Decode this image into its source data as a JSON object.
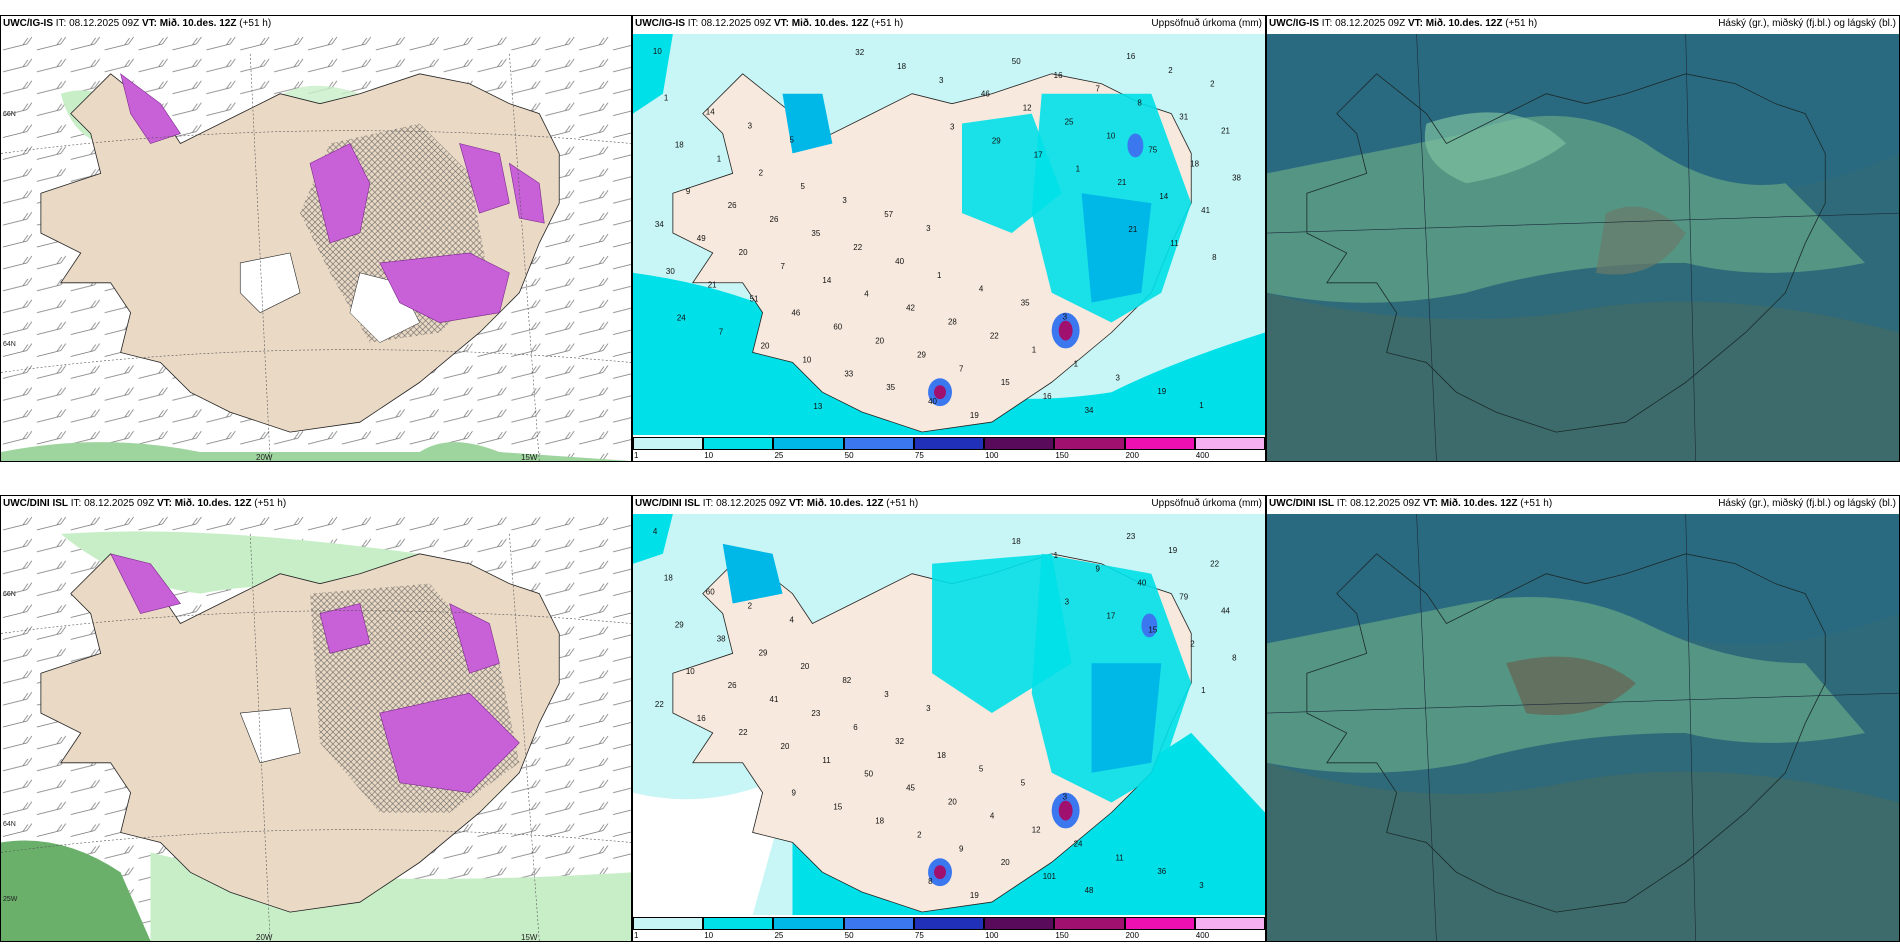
{
  "panels": [
    {
      "id": "p1",
      "model": "UWC/IG-IS",
      "it_label": "IT:",
      "it_value": "08.12.2025 09Z",
      "vt_label": "VT:",
      "vt_value": "Mið. 10.des. 12Z",
      "lead": "(+51 h)",
      "right_title": ""
    },
    {
      "id": "p2",
      "model": "UWC/IG-IS",
      "it_label": "IT:",
      "it_value": "08.12.2025 09Z",
      "vt_label": "VT:",
      "vt_value": "Mið. 10.des. 12Z",
      "lead": "(+51 h)",
      "right_title": "Uppsöfnuð úrkoma (mm)"
    },
    {
      "id": "p3",
      "model": "UWC/IG-IS",
      "it_label": "IT:",
      "it_value": "08.12.2025 09Z",
      "vt_label": "VT:",
      "vt_value": "Mið. 10.des. 12Z",
      "lead": "(+51 h)",
      "right_title": "Háský (gr.), miðský (fj.bl.) og lágský (bl.)"
    },
    {
      "id": "p4",
      "model": "UWC/DINI ISL",
      "it_label": "IT:",
      "it_value": "08.12.2025 09Z",
      "vt_label": "VT:",
      "vt_value": "Mið. 10.des. 12Z",
      "lead": "(+51 h)",
      "right_title": ""
    },
    {
      "id": "p5",
      "model": "UWC/DINI ISL",
      "it_label": "IT:",
      "it_value": "08.12.2025 09Z",
      "vt_label": "VT:",
      "vt_value": "Mið. 10.des. 12Z",
      "lead": "(+51 h)",
      "right_title": "Uppsöfnuð úrkoma (mm)"
    },
    {
      "id": "p6",
      "model": "UWC/DINI ISL",
      "it_label": "IT:",
      "it_value": "08.12.2025 09Z",
      "vt_label": "VT:",
      "vt_value": "Mið. 10.des. 12Z",
      "lead": "(+51 h)",
      "right_title": "Háský (gr.), miðský (fj.bl.) og lágský (bl.)"
    }
  ],
  "axis_labels": {
    "lat_66": "66N",
    "lat_64": "64N",
    "lat_64b": "64N",
    "lon_20": "20W",
    "lon_15": "15W",
    "lon_25": "25W"
  },
  "colorbar": {
    "ticks": [
      "1",
      "10",
      "25",
      "50",
      "75",
      "100",
      "150",
      "200",
      "400"
    ],
    "colors": [
      "#c8f5f5",
      "#00e0e8",
      "#00b8e8",
      "#3b78f0",
      "#2030b8",
      "#5a0a5a",
      "#a0106e",
      "#ee10b0",
      "#f4b0f0"
    ]
  },
  "precip_labels_top": [
    "10",
    "5",
    "3",
    "3",
    "1",
    "3",
    "57",
    "35",
    "19",
    "14",
    "3",
    "4",
    "3",
    "1",
    "5",
    "1",
    "1",
    "2",
    "2",
    "40",
    "1",
    "2",
    "1",
    "22",
    "22",
    "16",
    "18",
    "35",
    "28",
    "34",
    "21",
    "26",
    "42",
    "16",
    "31",
    "26",
    "4",
    "15",
    "8",
    "9",
    "14",
    "7",
    "7",
    "38",
    "7",
    "29",
    "16",
    "18",
    "20",
    "20",
    "50",
    "75",
    "49",
    "60",
    "19",
    "10",
    "34",
    "46",
    "40",
    "25",
    "41",
    "51",
    "35",
    "12",
    "14",
    "21",
    "33",
    "46",
    "21",
    "30",
    "10",
    "3",
    "1",
    "8",
    "20",
    "18",
    "17",
    "11",
    "7",
    "32",
    "29",
    "21",
    "24",
    "13",
    "3"
  ],
  "precip_labels_bottom": [
    "4",
    "4",
    "3",
    "3",
    "3",
    "2",
    "3",
    "5",
    "36",
    "60",
    "82",
    "5",
    "11",
    "18",
    "20",
    "18",
    "24",
    "22",
    "29",
    "32",
    "12",
    "19",
    "38",
    "6",
    "4",
    "23",
    "29",
    "23",
    "20",
    "48",
    "44",
    "41",
    "45",
    "101",
    "79",
    "26",
    "50",
    "20",
    "40",
    "10",
    "11",
    "9",
    "9",
    "8",
    "20",
    "2",
    "1",
    "2",
    "22",
    "18",
    "18",
    "15",
    "16",
    "15",
    "19",
    "17",
    "22",
    "9",
    "8",
    "3",
    "1"
  ],
  "colors": {
    "land": "#e9d9c5",
    "sea": "#ffffff",
    "precip_purple": "#c860d8",
    "wind_green": "#c8eec8",
    "cloud_base": "#2f6a7a"
  }
}
